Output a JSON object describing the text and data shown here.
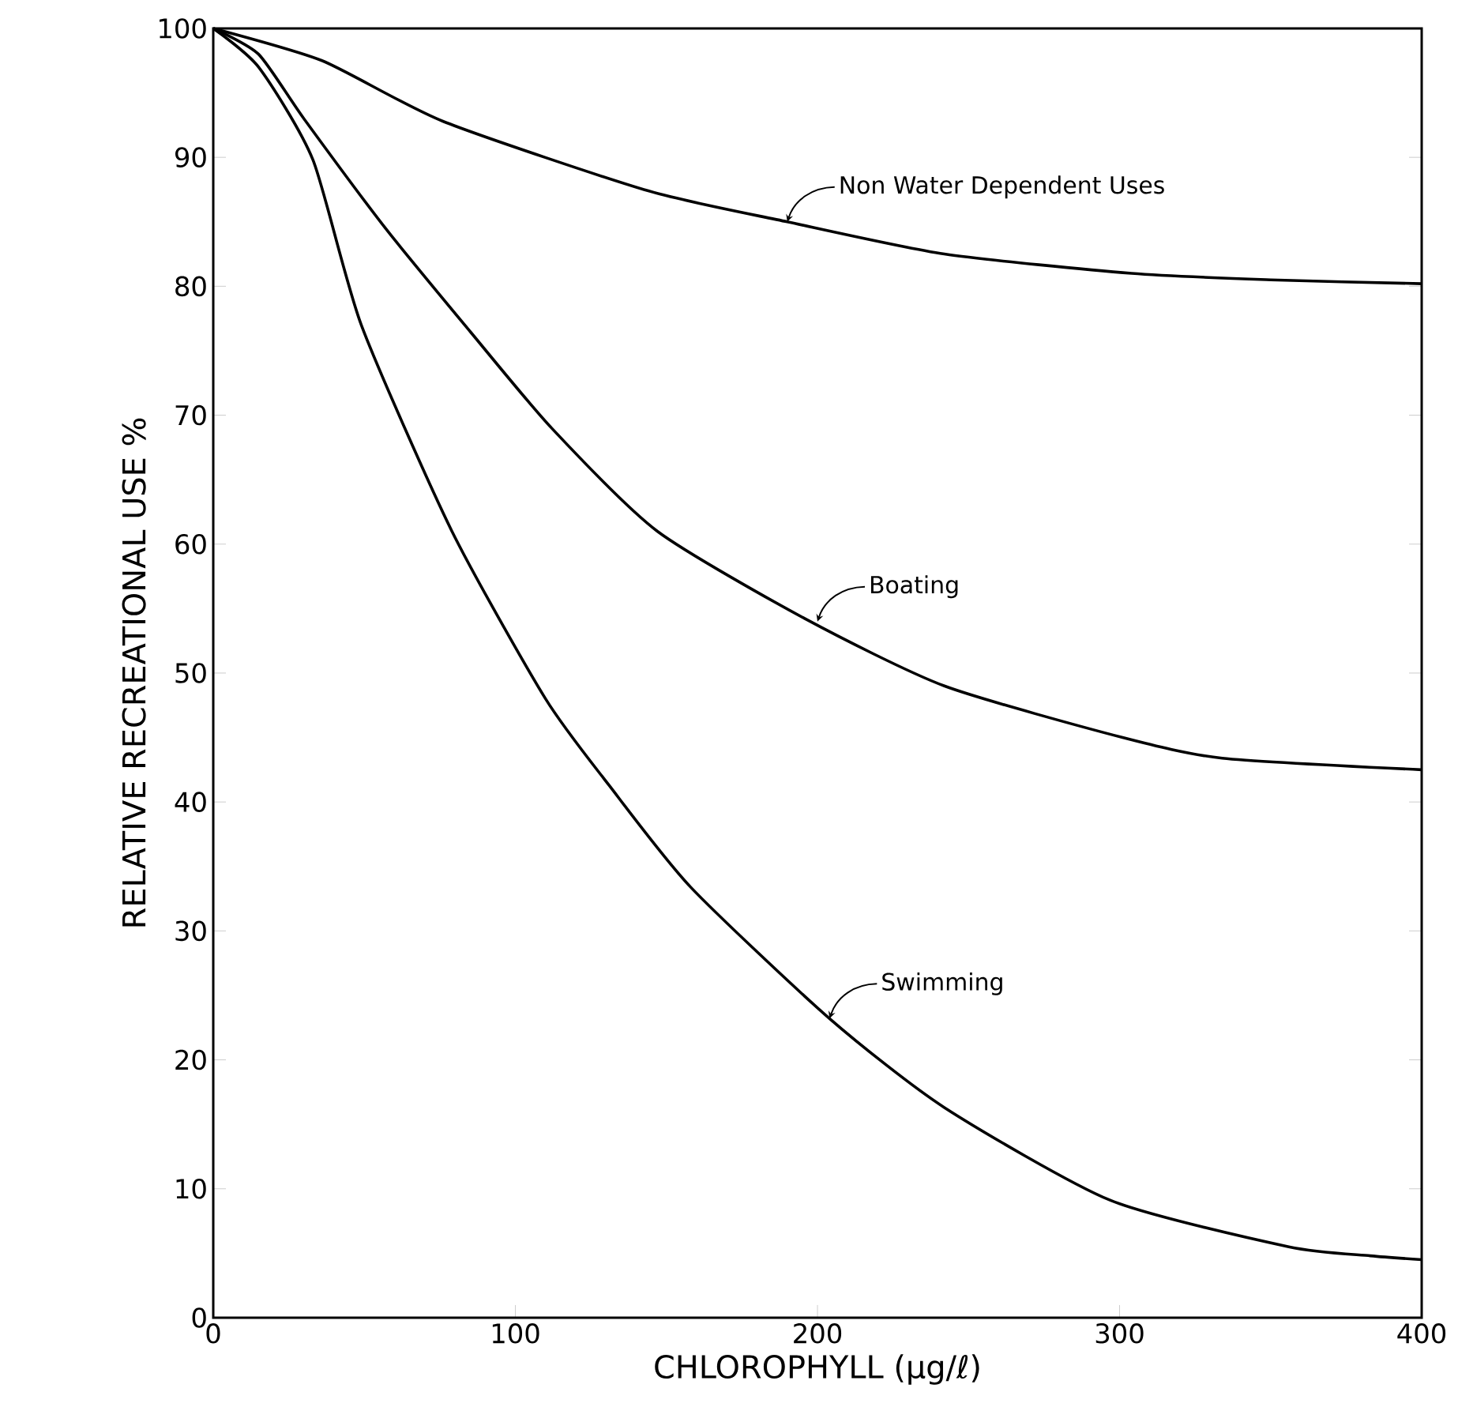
{
  "chart_data": {
    "type": "line",
    "xlabel": "CHLOROPHYLL (µg/ℓ)",
    "ylabel": "RELATIVE RECREATIONAL USE %",
    "xlim": [
      0,
      400
    ],
    "ylim": [
      0,
      100
    ],
    "xticks": [
      0,
      100,
      200,
      300,
      400
    ],
    "yticks": [
      0,
      10,
      20,
      30,
      40,
      50,
      60,
      70,
      80,
      90,
      100
    ],
    "grid": false,
    "marker": "none",
    "line_style": "solid",
    "series": [
      {
        "color": "#000000",
        "x": [
          0,
          36,
          76,
          144,
          190,
          242,
          304,
          350,
          400
        ],
        "values": [
          100,
          97.5,
          92.8,
          87.4,
          85,
          82.5,
          81,
          80.5,
          80.2
        ]
      },
      {
        "color": "#000000",
        "x": [
          0,
          15,
          30,
          57,
          85,
          112,
          147,
          196,
          242,
          301,
          334,
          400
        ],
        "values": [
          100,
          98,
          93,
          84.5,
          76.5,
          69,
          61,
          54.2,
          49,
          45,
          43.4,
          42.5
        ]
      },
      {
        "color": "#000000",
        "x": [
          0,
          15,
          33,
          49,
          79,
          110,
          131,
          158,
          204,
          242,
          297,
          356,
          383,
          400
        ],
        "values": [
          100,
          97,
          89.8,
          77,
          61,
          48,
          41.3,
          33.4,
          23.2,
          16.3,
          9.1,
          5.5,
          4.8,
          4.5
        ]
      }
    ],
    "annotations": [
      {
        "text": "Non Water Dependent Uses",
        "x": 190,
        "y": 85
      },
      {
        "text": "Boating",
        "x": 200,
        "y": 54
      },
      {
        "text": "Swimming",
        "x": 204,
        "y": 23.2
      }
    ]
  }
}
